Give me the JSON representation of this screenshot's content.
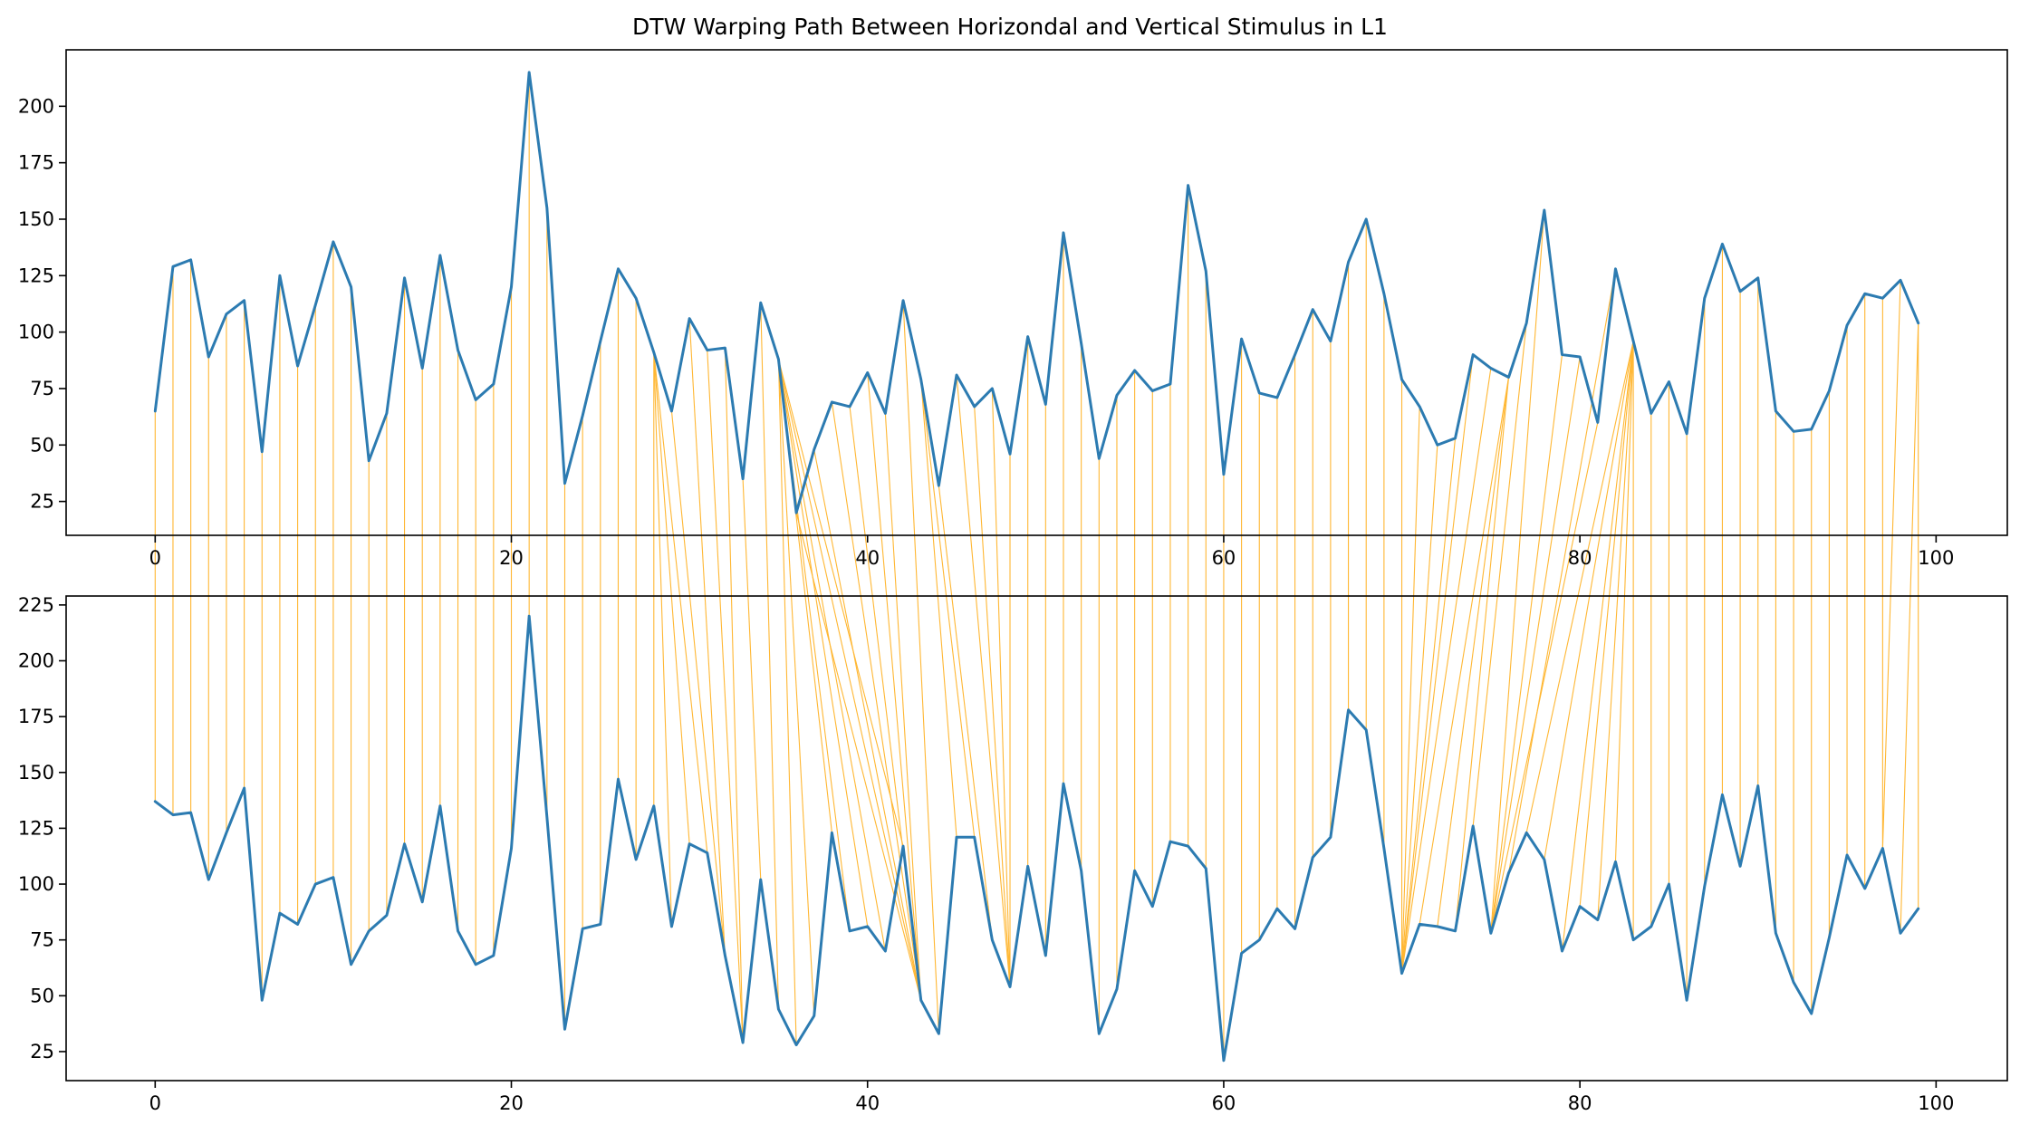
{
  "chart_data": {
    "type": "line",
    "title": "DTW Warping Path Between Horizondal and Vertical Stimulus in L1",
    "colors": {
      "series": "#2c7bb1",
      "warping_path": "#ffb733"
    },
    "grid": false,
    "panels": [
      {
        "id": "top",
        "xlim": [
          -5,
          104
        ],
        "ylim": [
          10,
          225
        ],
        "xticks": [
          0,
          20,
          40,
          60,
          80,
          100
        ],
        "yticks": [
          25,
          50,
          75,
          100,
          125,
          150,
          175,
          200
        ],
        "values": [
          65,
          129,
          132,
          89,
          108,
          114,
          47,
          125,
          85,
          112,
          140,
          120,
          43,
          64,
          124,
          84,
          134,
          92,
          70,
          77,
          120,
          215,
          155,
          33,
          63,
          96,
          128,
          115,
          91,
          65,
          106,
          92,
          93,
          35,
          113,
          88,
          20,
          48,
          69,
          67,
          82,
          64,
          114,
          79,
          32,
          81,
          67,
          75,
          46,
          98,
          68,
          144,
          95,
          44,
          72,
          83,
          74,
          77,
          165,
          127,
          37,
          97,
          73,
          71,
          90,
          110,
          96,
          131,
          150,
          117,
          79,
          67,
          50,
          53,
          90,
          84,
          80,
          104,
          154,
          90,
          89,
          60,
          128,
          96,
          64,
          78,
          55,
          115,
          139,
          118,
          124,
          65,
          56,
          57,
          74,
          103,
          117,
          115,
          123,
          104
        ]
      },
      {
        "id": "bottom",
        "xlim": [
          -5,
          104
        ],
        "ylim": [
          12,
          229
        ],
        "xticks": [
          0,
          20,
          40,
          60,
          80,
          100
        ],
        "yticks": [
          25,
          50,
          75,
          100,
          125,
          150,
          175,
          200,
          225
        ],
        "values": [
          137,
          131,
          132,
          102,
          123,
          143,
          48,
          87,
          82,
          100,
          103,
          64,
          79,
          86,
          118,
          92,
          135,
          79,
          64,
          68,
          116,
          220,
          130,
          35,
          80,
          82,
          147,
          111,
          135,
          81,
          118,
          114,
          68,
          29,
          102,
          44,
          28,
          41,
          123,
          79,
          81,
          70,
          117,
          48,
          33,
          121,
          121,
          75,
          54,
          108,
          68,
          145,
          106,
          33,
          53,
          106,
          90,
          119,
          117,
          107,
          21,
          69,
          75,
          89,
          80,
          112,
          121,
          178,
          169,
          116,
          60,
          82,
          81,
          79,
          126,
          78,
          105,
          123,
          111,
          70,
          90,
          84,
          110,
          75,
          81,
          100,
          48,
          99,
          140,
          108,
          144,
          78,
          56,
          42,
          76,
          113,
          98,
          116,
          78,
          89
        ]
      }
    ],
    "warping_path": [
      [
        0,
        0
      ],
      [
        1,
        1
      ],
      [
        2,
        2
      ],
      [
        3,
        3
      ],
      [
        4,
        4
      ],
      [
        5,
        5
      ],
      [
        6,
        6
      ],
      [
        7,
        7
      ],
      [
        8,
        8
      ],
      [
        9,
        9
      ],
      [
        10,
        10
      ],
      [
        11,
        11
      ],
      [
        12,
        12
      ],
      [
        13,
        13
      ],
      [
        14,
        14
      ],
      [
        15,
        15
      ],
      [
        16,
        16
      ],
      [
        17,
        17
      ],
      [
        18,
        18
      ],
      [
        19,
        19
      ],
      [
        20,
        20
      ],
      [
        21,
        21
      ],
      [
        22,
        22
      ],
      [
        23,
        23
      ],
      [
        24,
        24
      ],
      [
        25,
        25
      ],
      [
        26,
        26
      ],
      [
        27,
        27
      ],
      [
        28,
        28
      ],
      [
        28,
        29
      ],
      [
        28,
        30
      ],
      [
        28,
        31
      ],
      [
        29,
        32
      ],
      [
        30,
        32
      ],
      [
        31,
        33
      ],
      [
        32,
        33
      ],
      [
        33,
        34
      ],
      [
        34,
        35
      ],
      [
        35,
        36
      ],
      [
        35,
        37
      ],
      [
        35,
        38
      ],
      [
        35,
        39
      ],
      [
        35,
        40
      ],
      [
        35,
        41
      ],
      [
        35,
        42
      ],
      [
        35,
        43
      ],
      [
        36,
        43
      ],
      [
        37,
        43
      ],
      [
        38,
        43
      ],
      [
        39,
        43
      ],
      [
        40,
        43
      ],
      [
        41,
        43
      ],
      [
        42,
        44
      ],
      [
        43,
        45
      ],
      [
        43,
        46
      ],
      [
        44,
        47
      ],
      [
        45,
        48
      ],
      [
        46,
        48
      ],
      [
        47,
        48
      ],
      [
        48,
        48
      ],
      [
        49,
        49
      ],
      [
        50,
        50
      ],
      [
        51,
        51
      ],
      [
        52,
        52
      ],
      [
        53,
        53
      ],
      [
        54,
        54
      ],
      [
        55,
        55
      ],
      [
        56,
        56
      ],
      [
        57,
        57
      ],
      [
        58,
        58
      ],
      [
        59,
        59
      ],
      [
        60,
        60
      ],
      [
        61,
        61
      ],
      [
        62,
        62
      ],
      [
        63,
        63
      ],
      [
        64,
        64
      ],
      [
        65,
        65
      ],
      [
        66,
        66
      ],
      [
        67,
        67
      ],
      [
        68,
        68
      ],
      [
        69,
        69
      ],
      [
        70,
        70
      ],
      [
        71,
        70
      ],
      [
        72,
        70
      ],
      [
        73,
        70
      ],
      [
        74,
        70
      ],
      [
        75,
        70
      ],
      [
        76,
        71
      ],
      [
        76,
        72
      ],
      [
        76,
        73
      ],
      [
        77,
        74
      ],
      [
        78,
        75
      ],
      [
        79,
        75
      ],
      [
        80,
        75
      ],
      [
        81,
        75
      ],
      [
        82,
        76
      ],
      [
        83,
        77
      ],
      [
        83,
        78
      ],
      [
        83,
        79
      ],
      [
        83,
        80
      ],
      [
        83,
        81
      ],
      [
        83,
        82
      ],
      [
        83,
        83
      ],
      [
        84,
        84
      ],
      [
        85,
        85
      ],
      [
        86,
        86
      ],
      [
        87,
        87
      ],
      [
        88,
        88
      ],
      [
        89,
        89
      ],
      [
        90,
        90
      ],
      [
        91,
        91
      ],
      [
        92,
        92
      ],
      [
        93,
        93
      ],
      [
        94,
        94
      ],
      [
        95,
        95
      ],
      [
        96,
        96
      ],
      [
        97,
        97
      ],
      [
        98,
        97
      ],
      [
        99,
        98
      ],
      [
        99,
        99
      ]
    ]
  }
}
